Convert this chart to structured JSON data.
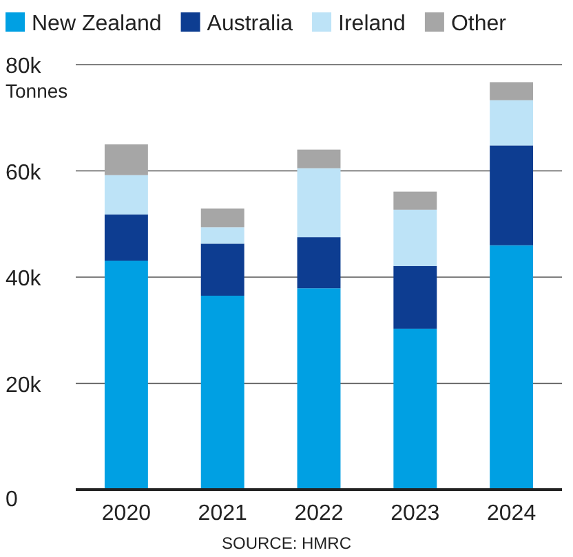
{
  "chart_data": {
    "type": "bar",
    "stacked": true,
    "ylabel": "Tonnes",
    "categories": [
      "2020",
      "2021",
      "2022",
      "2023",
      "2024"
    ],
    "series": [
      {
        "name": "New Zealand",
        "color": "#00a0e3",
        "values": [
          43100,
          36500,
          37900,
          30300,
          46000
        ]
      },
      {
        "name": "Australia",
        "color": "#0d3d91",
        "values": [
          8700,
          9800,
          9600,
          11800,
          18800
        ]
      },
      {
        "name": "Ireland",
        "color": "#bde3f7",
        "values": [
          7400,
          3100,
          13000,
          10600,
          8500
        ]
      },
      {
        "name": "Other",
        "color": "#a6a6a6",
        "values": [
          5800,
          3500,
          3500,
          3400,
          3400
        ]
      }
    ],
    "ylim": [
      0,
      80000
    ],
    "yticks": [
      0,
      {
        "value": 20000,
        "label": "20k"
      },
      {
        "value": 40000,
        "label": "40k"
      },
      {
        "value": 60000,
        "label": "60k"
      },
      {
        "value": 80000,
        "label": "80k"
      }
    ],
    "grid": "y",
    "legend": "top",
    "annotations": [
      "SOURCE: HMRC"
    ]
  }
}
